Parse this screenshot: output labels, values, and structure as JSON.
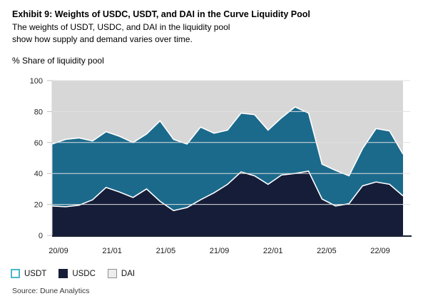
{
  "title": "Exhibit 9: Weights of USDC, USDT, and DAI in the Curve Liquidity Pool",
  "subtitle_line1": "The weights of USDT, USDC, and DAI in the liquidity pool",
  "subtitle_line2": "show how supply and demand varies over time.",
  "axis_unit_label": "% Share of liquidity pool",
  "source": "Source: Dune Analytics",
  "legend": [
    {
      "label": "USDT",
      "swatch_fill": "#ffffff",
      "swatch_border": "#4bb6cc",
      "swatch_border_width": 2
    },
    {
      "label": "USDC",
      "swatch_fill": "#151d38",
      "swatch_border": "#151d38",
      "swatch_border_width": 1
    },
    {
      "label": "DAI",
      "swatch_fill": "#ededed",
      "swatch_border": "#8f8f8f",
      "swatch_border_width": 1
    }
  ],
  "colors": {
    "usdc_area": "#151d38",
    "usdt_area": "#1b6a8c",
    "dai_area": "#d7d7d7",
    "boundary_line": "#ffffff",
    "gridline": "#e0e0e0",
    "axis_line": "#1b2135",
    "tick_stub": "#bfbfbf"
  },
  "chart_data": {
    "type": "area",
    "stacked": true,
    "title": "Weights of USDC, USDT, and DAI in the Curve Liquidity Pool",
    "ylabel": "% Share of liquidity pool",
    "ylim": [
      0,
      100
    ],
    "y_ticks": [
      0,
      20,
      40,
      60,
      80,
      100
    ],
    "x_tick_labels": [
      "20/09",
      "21/01",
      "21/05",
      "21/09",
      "22/01",
      "22/05",
      "22/09"
    ],
    "grid": true,
    "legend_position": "bottom-left",
    "x": [
      "2020/09",
      "2020/10",
      "2020/11",
      "2020/12",
      "2021/01",
      "2021/02",
      "2021/03",
      "2021/04",
      "2021/05",
      "2021/06",
      "2021/07",
      "2021/08",
      "2021/09",
      "2021/10",
      "2021/11",
      "2021/12",
      "2022/01",
      "2022/02",
      "2022/03",
      "2022/04",
      "2022/05",
      "2022/06",
      "2022/07",
      "2022/08",
      "2022/09",
      "2022/10",
      "2022/11"
    ],
    "series": [
      {
        "name": "USDC",
        "color": "#151d38",
        "values": [
          19,
          18.5,
          19.5,
          23,
          31,
          28,
          24.5,
          30,
          22,
          16,
          18,
          23,
          27.5,
          33,
          41,
          38.5,
          33,
          39,
          40,
          41.5,
          23.5,
          19,
          20.5,
          32,
          34.5,
          33,
          25.5
        ]
      },
      {
        "name": "USDT",
        "color": "#1b6a8c",
        "values": [
          40,
          43.5,
          43.5,
          38,
          36,
          36,
          35.5,
          35.5,
          52,
          46,
          41,
          47,
          38.5,
          35,
          38,
          39.5,
          35,
          37,
          43,
          37.5,
          22.5,
          23,
          18,
          24,
          34.5,
          34.5,
          27
        ]
      },
      {
        "name": "DAI",
        "color": "#d7d7d7",
        "values": [
          41,
          38,
          37,
          39,
          33,
          36,
          40,
          34.5,
          26,
          38,
          41,
          30,
          34,
          32,
          21,
          22,
          32,
          24,
          17,
          21,
          54,
          58,
          61.5,
          44,
          31,
          32.5,
          47.5
        ]
      }
    ]
  }
}
